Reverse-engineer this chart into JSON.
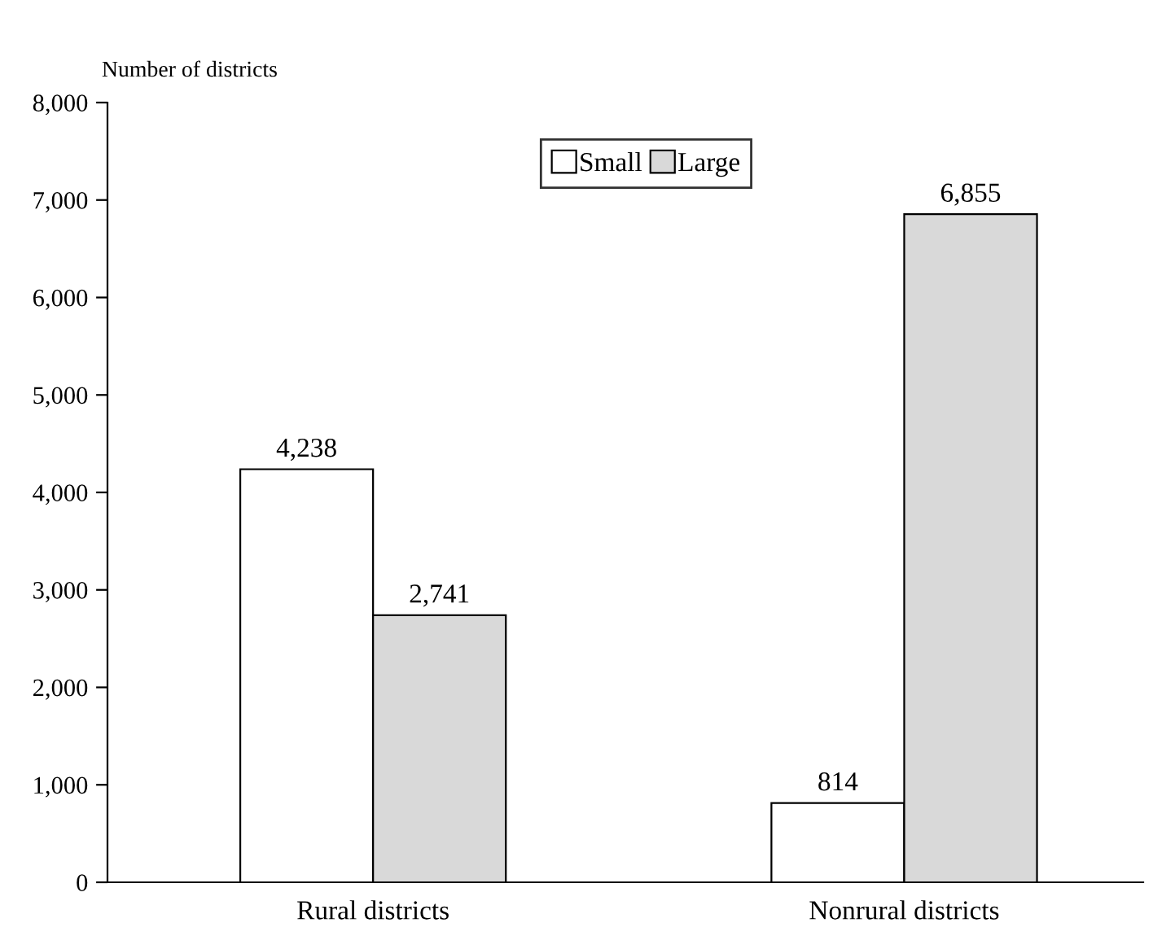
{
  "chart_data": {
    "type": "bar",
    "ylabel": "Number of districts",
    "categories": [
      "Rural districts",
      "Nonrural districts"
    ],
    "series": [
      {
        "name": "Small",
        "color": "#ffffff",
        "values": [
          4238,
          814
        ],
        "value_labels": [
          "4,238",
          "814"
        ]
      },
      {
        "name": "Large",
        "color": "#d9d9d9",
        "values": [
          2741,
          6855
        ],
        "value_labels": [
          "2,741",
          "6,855"
        ]
      }
    ],
    "ylim": [
      0,
      8000
    ],
    "yticks": [
      {
        "value": 0,
        "label": "0"
      },
      {
        "value": 1000,
        "label": "1,000"
      },
      {
        "value": 2000,
        "label": "2,000"
      },
      {
        "value": 3000,
        "label": "3,000"
      },
      {
        "value": 4000,
        "label": "4,000"
      },
      {
        "value": 5000,
        "label": "5,000"
      },
      {
        "value": 6000,
        "label": "6,000"
      },
      {
        "value": 7000,
        "label": "7,000"
      },
      {
        "value": 8000,
        "label": "8,000"
      }
    ],
    "legend": "top",
    "grid": false
  }
}
